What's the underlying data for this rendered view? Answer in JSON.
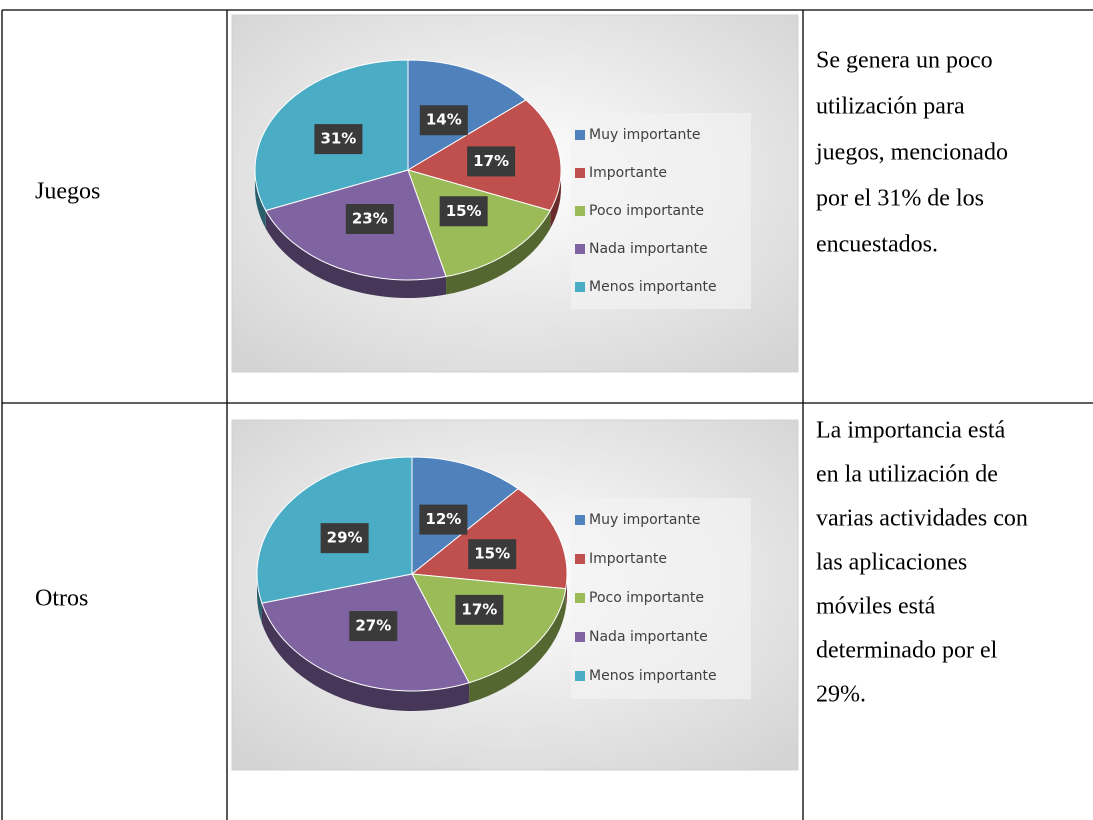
{
  "table": {
    "rows": [
      {
        "label": "Juegos",
        "text": [
          "Se genera un poco",
          "utilización para",
          "juegos, mencionado",
          "por el 31% de los",
          "encuestados."
        ]
      },
      {
        "label": "Otros",
        "text": [
          "La importancia está",
          "en la utilización de",
          "varias actividades con",
          "las aplicaciones",
          "móviles está",
          "determinado por el",
          "29%."
        ]
      }
    ]
  },
  "chart_data": [
    {
      "type": "pie",
      "categories": [
        "Muy importante",
        "Importante",
        "Poco importante",
        "Nada importante",
        "Menos importante"
      ],
      "values": [
        14,
        17,
        15,
        23,
        31
      ],
      "value_labels": [
        "14%",
        "17%",
        "15%",
        "23%",
        "31%"
      ],
      "colors": [
        "#4f81bd",
        "#c0504d",
        "#9bbb59",
        "#8064a2",
        "#4bacc6"
      ],
      "legend": "right"
    },
    {
      "type": "pie",
      "categories": [
        "Muy importante",
        "Importante",
        "Poco importante",
        "Nada importante",
        "Menos importante"
      ],
      "values": [
        12,
        15,
        17,
        27,
        29
      ],
      "value_labels": [
        "12%",
        "15%",
        "17%",
        "27%",
        "29%"
      ],
      "colors": [
        "#4f81bd",
        "#c0504d",
        "#9bbb59",
        "#8064a2",
        "#4bacc6"
      ],
      "legend": "right"
    }
  ]
}
